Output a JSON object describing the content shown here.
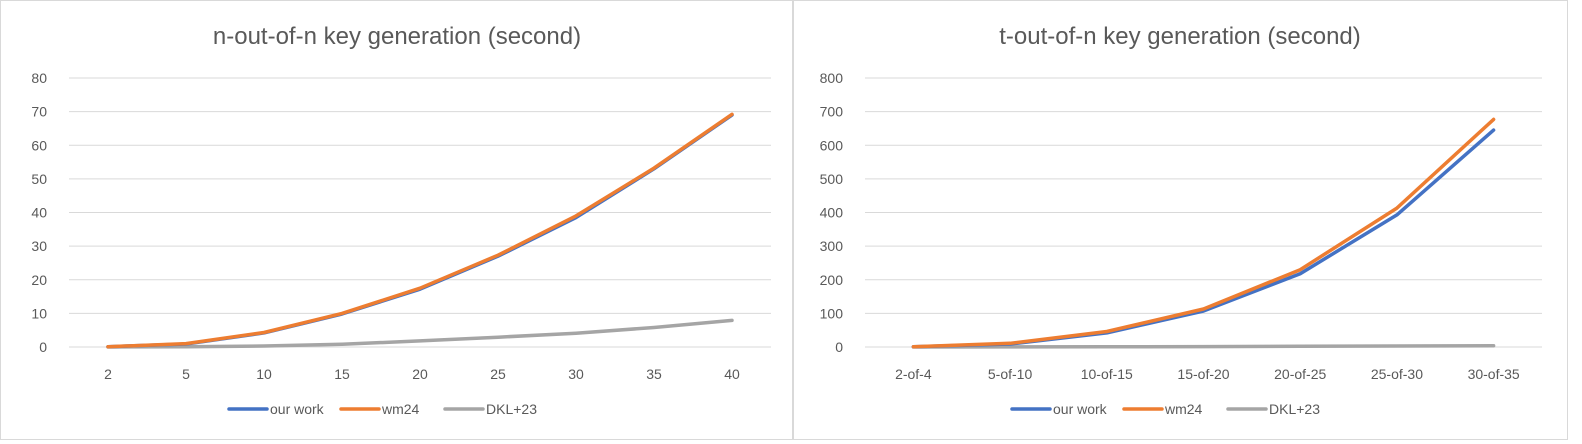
{
  "chart_data": [
    {
      "type": "line",
      "title": "n-out-of-n key generation (second)",
      "categories": [
        "2",
        "5",
        "10",
        "15",
        "20",
        "25",
        "30",
        "35",
        "40"
      ],
      "ylim": [
        0,
        80
      ],
      "yticks": [
        0,
        10,
        20,
        30,
        40,
        50,
        60,
        70,
        80
      ],
      "grid": true,
      "legend": "bottom",
      "series": [
        {
          "name": "our work",
          "color": "#4472C4",
          "values": [
            0.1,
            0.9,
            4.2,
            9.8,
            17.2,
            27,
            38.5,
            53,
            69
          ]
        },
        {
          "name": "wm24",
          "color": "#ED7D31",
          "values": [
            0.1,
            1,
            4.3,
            10,
            17.5,
            27.3,
            39,
            53.2,
            69.2
          ]
        },
        {
          "name": "DKL+23",
          "color": "#A5A5A5",
          "values": [
            0,
            0.1,
            0.3,
            0.8,
            1.8,
            2.9,
            4.1,
            5.8,
            7.9
          ]
        }
      ]
    },
    {
      "type": "line",
      "title": "t-out-of-n key generation (second)",
      "categories": [
        "2-of-4",
        "5-of-10",
        "10-of-15",
        "15-of-20",
        "20-of-25",
        "25-of-30",
        "30-of-35"
      ],
      "ylim": [
        0,
        800
      ],
      "yticks": [
        0,
        100,
        200,
        300,
        400,
        500,
        600,
        700,
        800
      ],
      "grid": true,
      "legend": "bottom",
      "series": [
        {
          "name": "our work",
          "color": "#4472C4",
          "values": [
            1,
            9,
            42,
            107,
            218,
            393,
            645
          ]
        },
        {
          "name": "wm24",
          "color": "#ED7D31",
          "values": [
            1,
            11,
            46,
            113,
            230,
            413,
            677
          ]
        },
        {
          "name": "DKL+23",
          "color": "#A5A5A5",
          "values": [
            0,
            0.2,
            0.6,
            1.2,
            2,
            3,
            4
          ]
        }
      ]
    }
  ]
}
